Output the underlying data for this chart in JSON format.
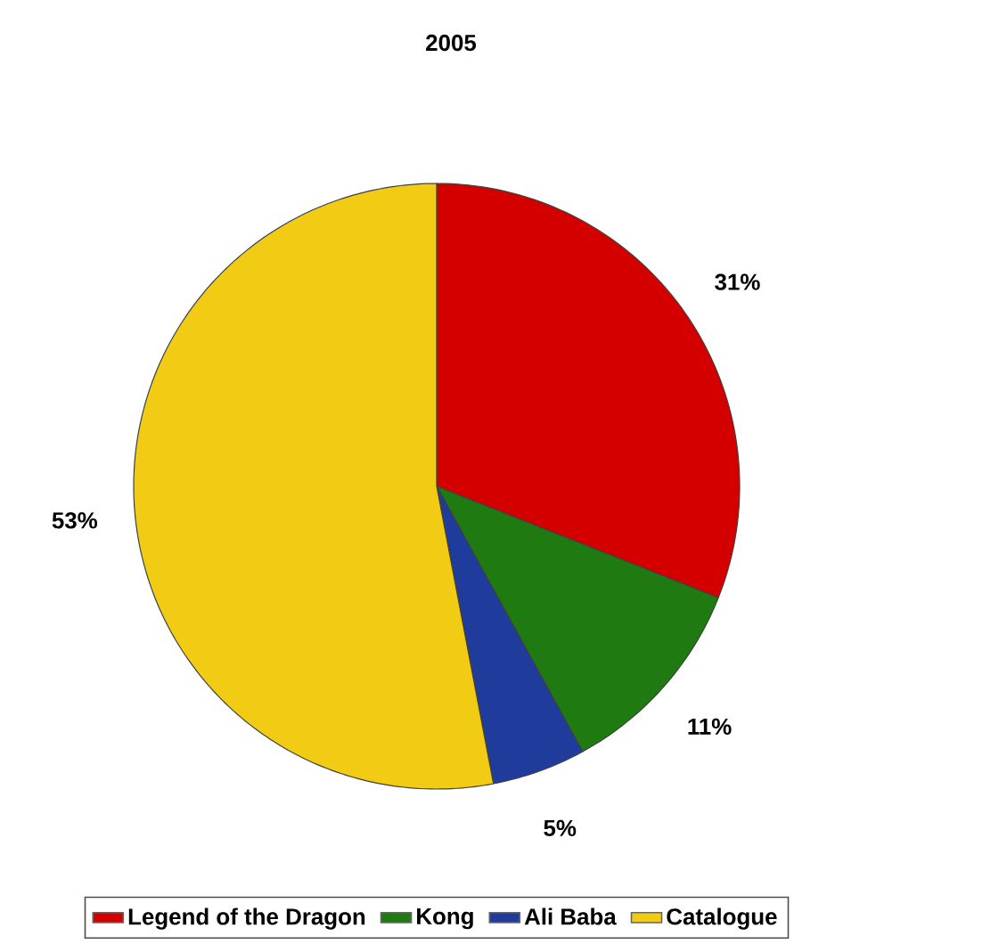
{
  "chart_data": {
    "type": "pie",
    "title": "2005",
    "categories": [
      "Legend of the Dragon",
      "Kong",
      "Ali Baba",
      "Catalogue"
    ],
    "values": [
      31,
      11,
      5,
      53
    ],
    "colors": [
      "#d40000",
      "#1f7a12",
      "#1f3c9c",
      "#f2cc14"
    ],
    "value_labels": [
      "31%",
      "11%",
      "5%",
      "53%"
    ],
    "legend": "bottom"
  }
}
